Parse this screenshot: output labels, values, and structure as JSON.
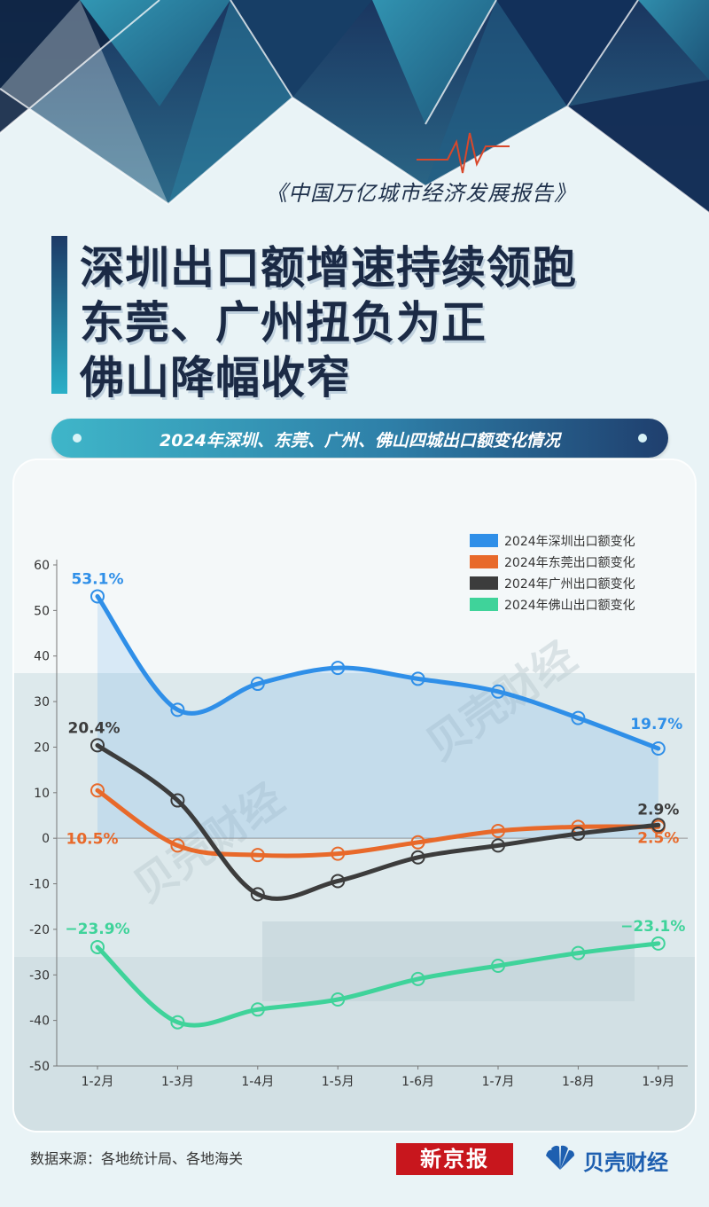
{
  "header": {
    "subtitle": "《中国万亿城市经济发展报告》",
    "title_lines": [
      "深圳出口额增速持续领跑",
      "东莞、广州扭负为正",
      "佛山降幅收窄"
    ],
    "banner": "2024年深圳、东莞、广州、佛山四城出口额变化情况"
  },
  "chart_data": {
    "type": "line",
    "categories": [
      "1-2月",
      "1-3月",
      "1-4月",
      "1-5月",
      "1-6月",
      "1-7月",
      "1-8月",
      "1-9月"
    ],
    "ylim": [
      -50,
      60
    ],
    "yticks": [
      60,
      50,
      40,
      30,
      20,
      10,
      0,
      -10,
      -20,
      -30,
      -40,
      -50
    ],
    "series": [
      {
        "name": "2024年深圳出口额变化",
        "color": "#2f8fe8",
        "values": [
          53.1,
          28.2,
          33.9,
          37.4,
          35.0,
          32.2,
          26.4,
          19.7
        ],
        "start_label": "53.1%",
        "end_label": "19.7%",
        "area": true
      },
      {
        "name": "2024年东莞出口额变化",
        "color": "#e8692a",
        "values": [
          10.5,
          -1.6,
          -3.7,
          -3.4,
          -0.9,
          1.6,
          2.5,
          2.5
        ],
        "start_label": "10.5%",
        "end_label": "2.5%",
        "area": false
      },
      {
        "name": "2024年广州出口额变化",
        "color": "#3c3c3c",
        "values": [
          20.4,
          8.3,
          -12.3,
          -9.4,
          -4.2,
          -1.6,
          1.0,
          2.9
        ],
        "start_label": "20.4%",
        "end_label": "2.9%",
        "area": false
      },
      {
        "name": "2024年佛山出口额变化",
        "color": "#3fd39a",
        "values": [
          -23.9,
          -40.4,
          -37.6,
          -35.4,
          -30.9,
          -28.0,
          -25.2,
          -23.1
        ],
        "start_label": "−23.9%",
        "end_label": "−23.1%",
        "area": false
      }
    ],
    "legend_position": "top-right",
    "watermark": "贝壳财经"
  },
  "footer": {
    "source": "数据来源：各地统计局、各地海关",
    "xjb_logo": "新京报",
    "bk_logo": "贝壳财经"
  }
}
